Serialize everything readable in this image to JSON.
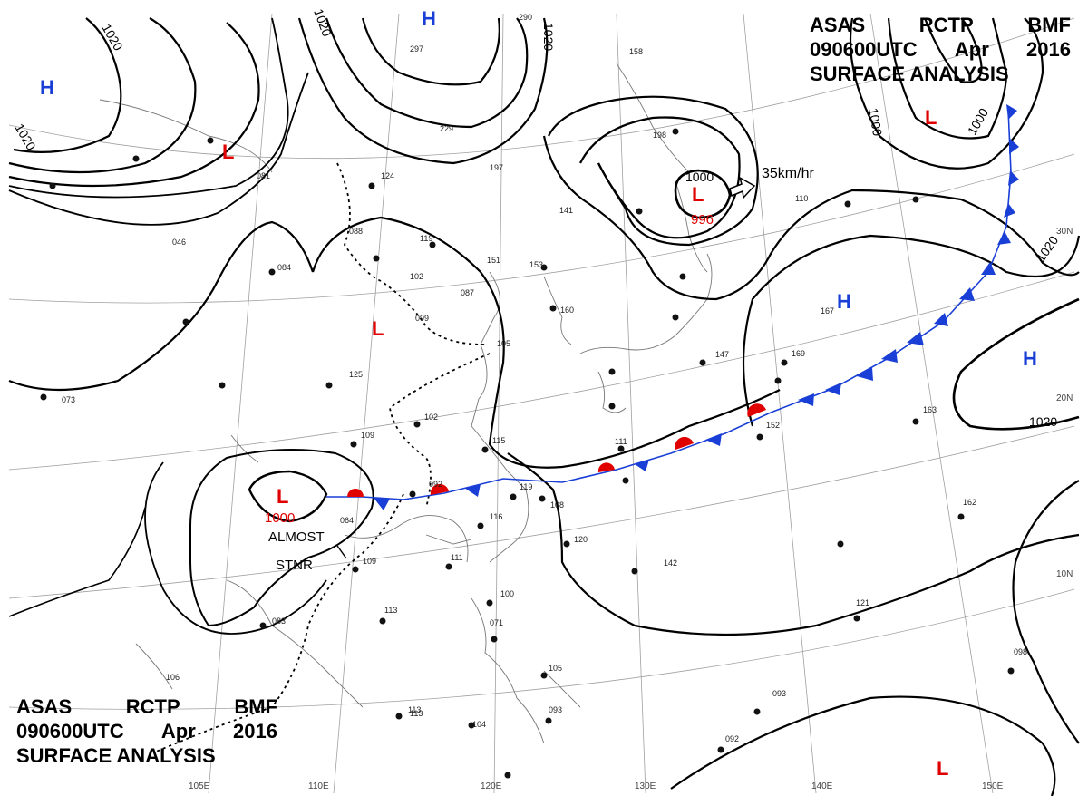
{
  "header": {
    "lines": [
      [
        "ASAS",
        "RCTP",
        "BMF"
      ],
      [
        "090600UTC",
        "Apr",
        "2016"
      ],
      [
        "SURFACE ANALYSIS"
      ]
    ]
  },
  "colors": {
    "high": "#1a3fd6",
    "low": "#e00000",
    "cold_front": "#1a3fd6",
    "warm_front": "#e00000",
    "isobar": "#000000",
    "coast": "#777777",
    "grid": "#999999"
  },
  "grid_labels": {
    "lon": [
      "105E",
      "110E",
      "120E",
      "130E",
      "140E",
      "150E"
    ],
    "lat": [
      "30N",
      "20N",
      "10N"
    ]
  },
  "isobar_labels": {
    "nw_1020_a": "1020",
    "nw_1020_b": "1020",
    "n_1020_a": "1020",
    "n_1020_b": "1020",
    "ne_1000_a": "1000",
    "ne_1000_b": "1000",
    "ne_1020": "1020",
    "e_1020": "1020",
    "japan_low_1000": "1000",
    "sw_low_1000": "1000"
  },
  "systems": [
    {
      "id": "h-nw",
      "type": "H"
    },
    {
      "id": "h-n",
      "type": "H"
    },
    {
      "id": "l-mongolia",
      "type": "L"
    },
    {
      "id": "l-china",
      "type": "L"
    },
    {
      "id": "l-japan-sea",
      "type": "L",
      "pressure": "996"
    },
    {
      "id": "l-ne",
      "type": "L"
    },
    {
      "id": "h-pacific-1",
      "type": "H"
    },
    {
      "id": "h-pacific-2",
      "type": "H"
    },
    {
      "id": "l-indochina",
      "type": "L"
    },
    {
      "id": "l-se",
      "type": "L"
    }
  ],
  "annotations": {
    "movement": "35km/hr",
    "stationary_1": "ALMOST",
    "stationary_2": "STNR"
  },
  "station_plots": [
    "290",
    "297",
    "229",
    "197",
    "158",
    "198",
    "081",
    "124",
    "088",
    "084",
    "102",
    "119",
    "151",
    "153",
    "087",
    "099",
    "125",
    "105",
    "141",
    "160",
    "110",
    "147",
    "167",
    "169",
    "152",
    "163",
    "109",
    "102",
    "115",
    "111",
    "119",
    "108",
    "116",
    "120",
    "142",
    "092",
    "064",
    "109",
    "111",
    "113",
    "083",
    "100",
    "071",
    "105",
    "106",
    "113",
    "104",
    "092",
    "093",
    "121",
    "162",
    "073",
    "046",
    "098",
    "093",
    "113"
  ]
}
